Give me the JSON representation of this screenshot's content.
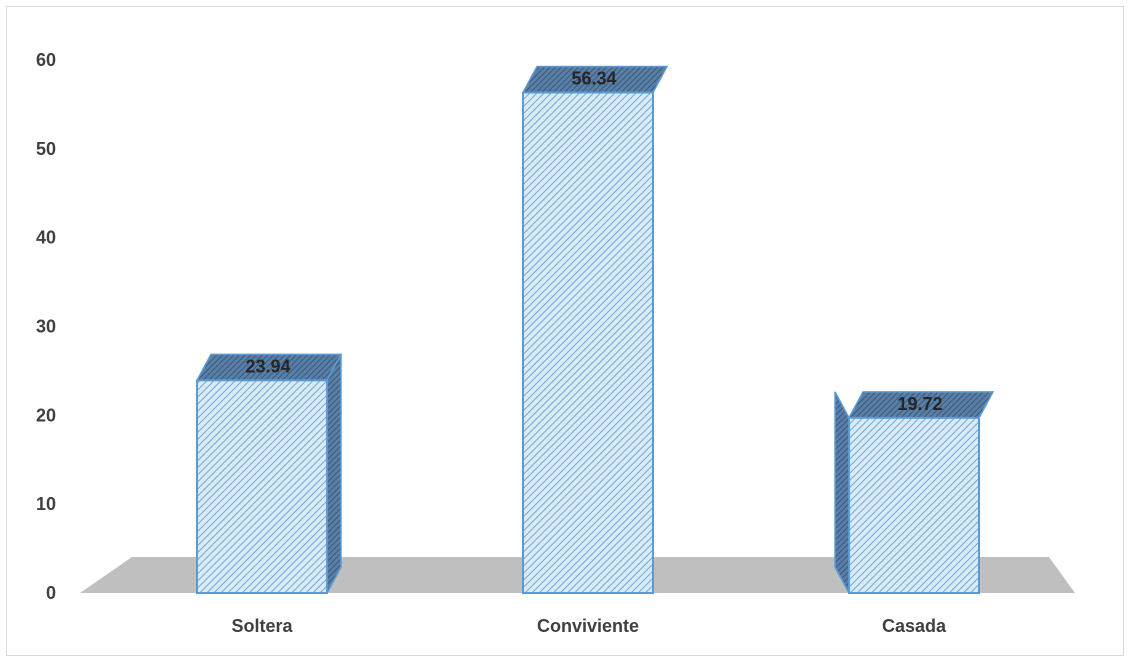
{
  "chart_data": {
    "type": "bar",
    "categories": [
      "Soltera",
      "Conviviente",
      "Casada"
    ],
    "values": [
      23.94,
      56.34,
      19.72
    ],
    "data_labels": [
      "23.94",
      "56.34",
      "19.72"
    ],
    "title": "",
    "xlabel": "",
    "ylabel": "",
    "ylim": [
      0,
      60
    ],
    "yticks": [
      "0",
      "10",
      "20",
      "30",
      "40",
      "50",
      "60"
    ],
    "grid": false,
    "legend": "none",
    "style": "3d-column",
    "colors": {
      "bar_fill": "#dbeaf7",
      "bar_hatch": "#6fa8dc",
      "bar_edge": "#5b9bd5",
      "bar_side": "#4a6f95",
      "floor": "#bfbfbf",
      "text": "#404040"
    }
  }
}
